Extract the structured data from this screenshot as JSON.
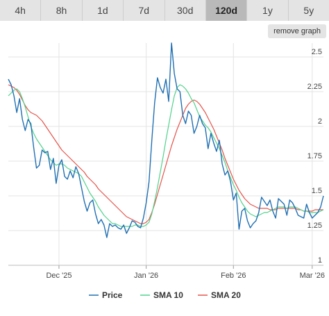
{
  "tabs": [
    {
      "label": "4h",
      "active": false
    },
    {
      "label": "8h",
      "active": false
    },
    {
      "label": "1d",
      "active": false
    },
    {
      "label": "7d",
      "active": false
    },
    {
      "label": "30d",
      "active": false
    },
    {
      "label": "120d",
      "active": true
    },
    {
      "label": "1y",
      "active": false
    },
    {
      "label": "5y",
      "active": false
    }
  ],
  "remove_graph_label": "remove graph",
  "chart_data": {
    "type": "line",
    "ylim": [
      1,
      2.6
    ],
    "y_ticks": [
      1,
      1.25,
      1.5,
      1.75,
      2,
      2.25,
      2.5
    ],
    "x_ticks": [
      {
        "day": 18,
        "label": "Dec '25"
      },
      {
        "day": 49,
        "label": "Jan '26"
      },
      {
        "day": 80,
        "label": "Feb '26"
      },
      {
        "day": 108,
        "label": "Mar '26"
      }
    ],
    "grid": true,
    "legend": "bottom",
    "series": [
      {
        "name": "Price",
        "color": "#1f6fb2",
        "values": [
          2.34,
          2.3,
          2.22,
          2.1,
          2.2,
          2.05,
          1.97,
          2.05,
          2.02,
          1.85,
          1.7,
          1.72,
          1.83,
          1.81,
          1.82,
          1.69,
          1.77,
          1.59,
          1.72,
          1.76,
          1.64,
          1.62,
          1.68,
          1.63,
          1.71,
          1.66,
          1.56,
          1.46,
          1.39,
          1.45,
          1.47,
          1.37,
          1.3,
          1.33,
          1.29,
          1.2,
          1.3,
          1.28,
          1.29,
          1.27,
          1.26,
          1.29,
          1.23,
          1.27,
          1.32,
          1.31,
          1.28,
          1.27,
          1.34,
          1.45,
          1.6,
          1.9,
          2.17,
          2.35,
          2.28,
          2.24,
          2.34,
          2.18,
          2.6,
          2.38,
          2.27,
          2.25,
          2.08,
          2.02,
          2.11,
          2.08,
          1.95,
          2.0,
          2.08,
          2.02,
          1.99,
          1.84,
          1.95,
          1.88,
          1.82,
          1.9,
          1.73,
          1.65,
          1.68,
          1.6,
          1.47,
          1.52,
          1.26,
          1.39,
          1.41,
          1.32,
          1.27,
          1.3,
          1.32,
          1.38,
          1.49,
          1.46,
          1.43,
          1.47,
          1.39,
          1.34,
          1.48,
          1.46,
          1.44,
          1.36,
          1.47,
          1.45,
          1.41,
          1.36,
          1.35,
          1.34,
          1.44,
          1.38,
          1.34,
          1.36,
          1.38,
          1.42,
          1.5
        ]
      },
      {
        "name": "SMA 10",
        "color": "#4fd28a",
        "values": [
          2.22,
          2.24,
          2.26,
          2.27,
          2.25,
          2.2,
          2.14,
          2.07,
          2.0,
          1.95,
          1.91,
          1.88,
          1.85,
          1.82,
          1.79,
          1.76,
          1.74,
          1.72,
          1.73,
          1.73,
          1.72,
          1.7,
          1.69,
          1.68,
          1.67,
          1.66,
          1.64,
          1.6,
          1.56,
          1.52,
          1.49,
          1.46,
          1.42,
          1.39,
          1.36,
          1.34,
          1.32,
          1.3,
          1.3,
          1.29,
          1.28,
          1.28,
          1.28,
          1.28,
          1.28,
          1.29,
          1.29,
          1.28,
          1.28,
          1.29,
          1.31,
          1.37,
          1.46,
          1.56,
          1.67,
          1.78,
          1.9,
          2.01,
          2.12,
          2.22,
          2.28,
          2.3,
          2.29,
          2.27,
          2.24,
          2.2,
          2.17,
          2.12,
          2.07,
          2.04,
          2.01,
          1.99,
          1.96,
          1.92,
          1.88,
          1.84,
          1.79,
          1.74,
          1.68,
          1.63,
          1.58,
          1.54,
          1.49,
          1.45,
          1.42,
          1.39,
          1.37,
          1.36,
          1.35,
          1.36,
          1.37,
          1.38,
          1.38,
          1.39,
          1.4,
          1.41,
          1.42,
          1.42,
          1.42,
          1.41,
          1.42,
          1.42,
          1.42,
          1.41,
          1.4,
          1.39,
          1.39,
          1.38,
          1.38,
          1.38,
          1.38,
          1.39,
          1.4
        ]
      },
      {
        "name": "SMA 20",
        "color": "#e4534a",
        "values": [
          2.3,
          2.29,
          2.28,
          2.26,
          2.23,
          2.19,
          2.15,
          2.12,
          2.1,
          2.09,
          2.08,
          2.06,
          2.04,
          2.01,
          1.98,
          1.95,
          1.92,
          1.89,
          1.86,
          1.83,
          1.81,
          1.79,
          1.77,
          1.75,
          1.73,
          1.71,
          1.69,
          1.67,
          1.64,
          1.62,
          1.6,
          1.58,
          1.55,
          1.53,
          1.51,
          1.49,
          1.47,
          1.45,
          1.43,
          1.41,
          1.39,
          1.37,
          1.35,
          1.34,
          1.33,
          1.32,
          1.31,
          1.3,
          1.3,
          1.31,
          1.33,
          1.38,
          1.44,
          1.51,
          1.58,
          1.65,
          1.72,
          1.79,
          1.86,
          1.92,
          1.98,
          2.03,
          2.08,
          2.13,
          2.16,
          2.18,
          2.19,
          2.18,
          2.16,
          2.13,
          2.1,
          2.06,
          2.02,
          1.98,
          1.93,
          1.88,
          1.83,
          1.77,
          1.72,
          1.67,
          1.62,
          1.58,
          1.54,
          1.51,
          1.48,
          1.46,
          1.44,
          1.43,
          1.42,
          1.41,
          1.41,
          1.41,
          1.41,
          1.4,
          1.4,
          1.4,
          1.41,
          1.41,
          1.41,
          1.41,
          1.41,
          1.41,
          1.41,
          1.4,
          1.4,
          1.39,
          1.39,
          1.39,
          1.39,
          1.4,
          1.4,
          1.4,
          1.4
        ]
      }
    ]
  }
}
